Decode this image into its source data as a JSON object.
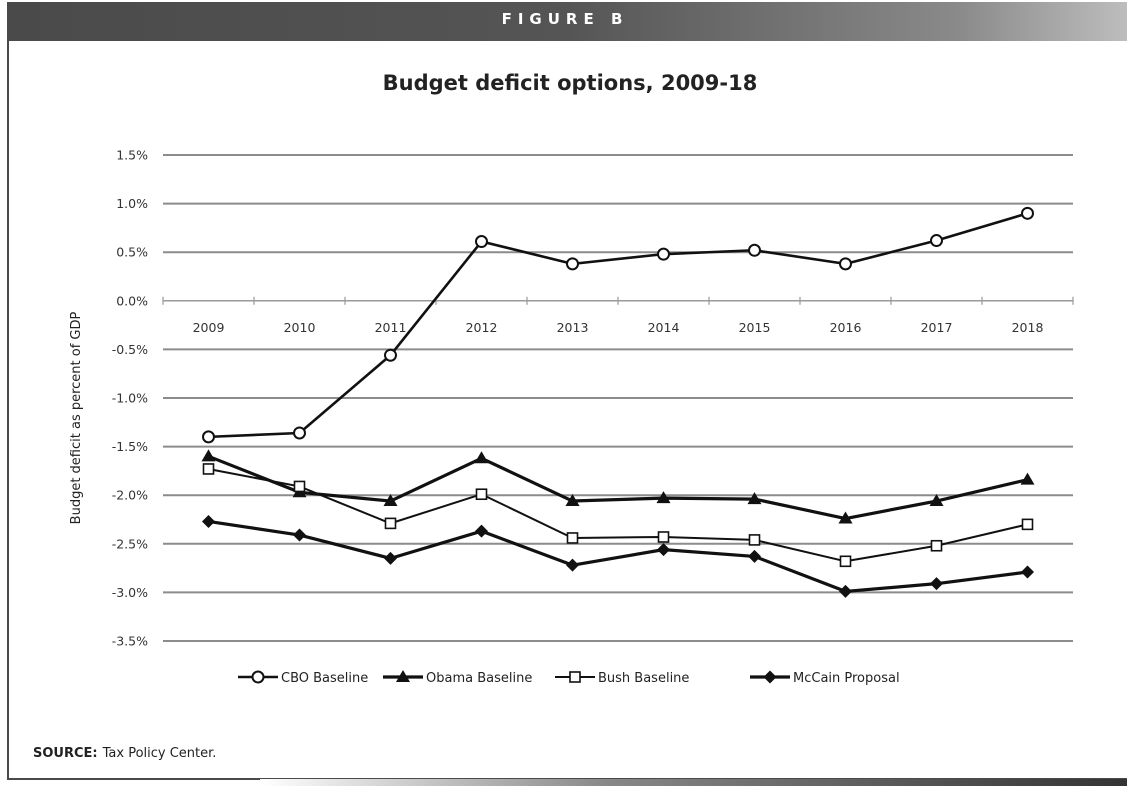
{
  "header": {
    "label": "FIGURE B"
  },
  "source": {
    "label": "SOURCE:",
    "text": "Tax Policy Center."
  },
  "chart_data": {
    "type": "line",
    "title": "Budget deficit options, 2009-18",
    "xlabel": "",
    "ylabel": "Budget deficit as percent of GDP",
    "x": [
      "2009",
      "2010",
      "2011",
      "2012",
      "2013",
      "2014",
      "2015",
      "2016",
      "2017",
      "2018"
    ],
    "ylim": [
      -3.5,
      1.5
    ],
    "yticks": [
      "1.5%",
      "1.0%",
      "0.5%",
      "0.0%",
      "-0.5%",
      "-1.0%",
      "-1.5%",
      "-2.0%",
      "-2.5%",
      "-3.0%",
      "-3.5%"
    ],
    "grid": true,
    "legend_position": "bottom",
    "series": [
      {
        "name": "CBO Baseline",
        "marker": "circle-open",
        "values": [
          -1.4,
          -1.36,
          -0.56,
          0.61,
          0.38,
          0.48,
          0.52,
          0.38,
          0.62,
          0.9
        ]
      },
      {
        "name": "Obama Baseline",
        "marker": "triangle-filled",
        "values": [
          -1.6,
          -1.97,
          -2.06,
          -1.62,
          -2.06,
          -2.03,
          -2.04,
          -2.24,
          -2.06,
          -1.84
        ]
      },
      {
        "name": "Bush Baseline",
        "marker": "square-open",
        "values": [
          -1.73,
          -1.91,
          -2.29,
          -1.99,
          -2.44,
          -2.43,
          -2.46,
          -2.68,
          -2.52,
          -2.3
        ]
      },
      {
        "name": "McCain Proposal",
        "marker": "diamond-filled",
        "values": [
          -2.27,
          -2.41,
          -2.65,
          -2.37,
          -2.72,
          -2.56,
          -2.63,
          -2.99,
          -2.91,
          -2.79
        ]
      }
    ]
  }
}
